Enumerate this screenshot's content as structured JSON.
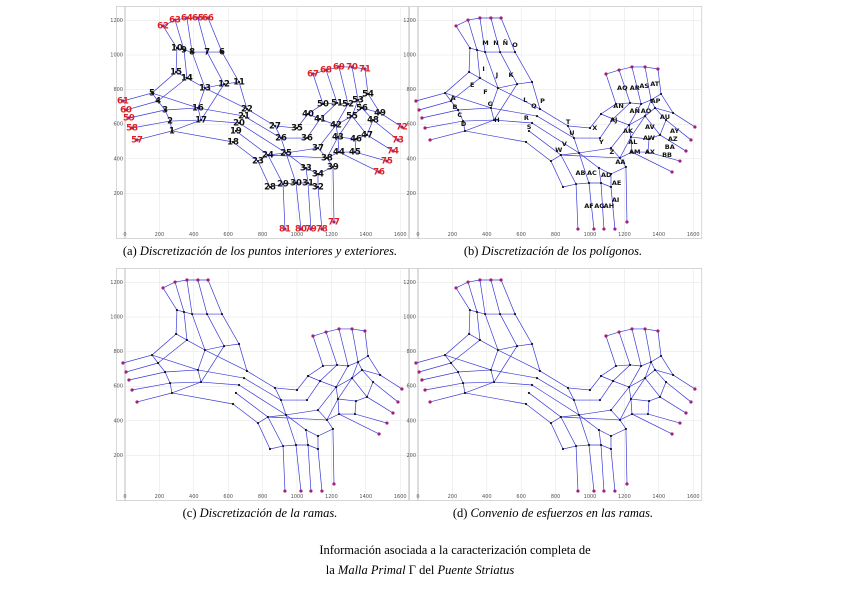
{
  "panels": [
    {
      "caption_label": "(a)",
      "caption": "Discretización de los puntos interiores y exteriores.",
      "xlim": [
        -50,
        1650
      ],
      "ylim": [
        -60,
        1280
      ],
      "xticks": [
        0,
        200,
        400,
        600,
        800,
        1000,
        1200,
        1400,
        1600
      ],
      "yticks": [
        200,
        400,
        600,
        800,
        1000,
        1200
      ],
      "labels": [
        {
          "text": "1",
          "x": 273,
          "y": 561
        },
        {
          "text": "2",
          "x": 262,
          "y": 618
        },
        {
          "text": "3",
          "x": 233,
          "y": 682
        },
        {
          "text": "4",
          "x": 192,
          "y": 734
        },
        {
          "text": "5",
          "x": 157,
          "y": 780
        },
        {
          "text": "6",
          "x": 564,
          "y": 1017
        },
        {
          "text": "7",
          "x": 477,
          "y": 1017
        },
        {
          "text": "8",
          "x": 390,
          "y": 1017
        },
        {
          "text": "9",
          "x": 343,
          "y": 1029
        },
        {
          "text": "10",
          "x": 302,
          "y": 1040
        },
        {
          "text": "11",
          "x": 663,
          "y": 844
        },
        {
          "text": "12",
          "x": 576,
          "y": 832
        },
        {
          "text": "13",
          "x": 465,
          "y": 809
        },
        {
          "text": "14",
          "x": 360,
          "y": 867
        },
        {
          "text": "15",
          "x": 297,
          "y": 902
        },
        {
          "text": "16",
          "x": 424,
          "y": 694
        },
        {
          "text": "17",
          "x": 442,
          "y": 624
        },
        {
          "text": "18",
          "x": 628,
          "y": 497
        },
        {
          "text": "19",
          "x": 645,
          "y": 561
        },
        {
          "text": "20",
          "x": 663,
          "y": 607
        },
        {
          "text": "21",
          "x": 692,
          "y": 647
        },
        {
          "text": "22",
          "x": 709,
          "y": 688
        },
        {
          "text": "23",
          "x": 773,
          "y": 387
        },
        {
          "text": "24",
          "x": 831,
          "y": 422
        },
        {
          "text": "25",
          "x": 936,
          "y": 434
        },
        {
          "text": "26",
          "x": 907,
          "y": 520
        },
        {
          "text": "27",
          "x": 872,
          "y": 590
        },
        {
          "text": "28",
          "x": 843,
          "y": 237
        },
        {
          "text": "29",
          "x": 919,
          "y": 254
        },
        {
          "text": "30",
          "x": 994,
          "y": 260
        },
        {
          "text": "31",
          "x": 1064,
          "y": 260
        },
        {
          "text": "32",
          "x": 1122,
          "y": 237
        },
        {
          "text": "33",
          "x": 1052,
          "y": 347
        },
        {
          "text": "34",
          "x": 1122,
          "y": 312
        },
        {
          "text": "35",
          "x": 1000,
          "y": 578
        },
        {
          "text": "36",
          "x": 1058,
          "y": 520
        },
        {
          "text": "37",
          "x": 1122,
          "y": 462
        },
        {
          "text": "38",
          "x": 1174,
          "y": 405
        },
        {
          "text": "39",
          "x": 1209,
          "y": 353
        },
        {
          "text": "40",
          "x": 1064,
          "y": 659
        },
        {
          "text": "41",
          "x": 1134,
          "y": 630
        },
        {
          "text": "42",
          "x": 1227,
          "y": 595
        },
        {
          "text": "43",
          "x": 1238,
          "y": 526
        },
        {
          "text": "44",
          "x": 1244,
          "y": 439
        },
        {
          "text": "45",
          "x": 1337,
          "y": 439
        },
        {
          "text": "46",
          "x": 1343,
          "y": 514
        },
        {
          "text": "47",
          "x": 1407,
          "y": 538
        },
        {
          "text": "48",
          "x": 1442,
          "y": 624
        },
        {
          "text": "49",
          "x": 1483,
          "y": 665
        },
        {
          "text": "50",
          "x": 1151,
          "y": 717
        },
        {
          "text": "51",
          "x": 1233,
          "y": 723
        },
        {
          "text": "52",
          "x": 1297,
          "y": 717
        },
        {
          "text": "53",
          "x": 1355,
          "y": 740
        },
        {
          "text": "54",
          "x": 1413,
          "y": 775
        },
        {
          "text": "55",
          "x": 1320,
          "y": 647
        },
        {
          "text": "56",
          "x": 1378,
          "y": 694
        }
      ],
      "outer_color": "#e02020",
      "outer_labels": [
        {
          "text": "57",
          "x": 70,
          "y": 509
        },
        {
          "text": "58",
          "x": 41,
          "y": 578
        },
        {
          "text": "59",
          "x": 23,
          "y": 636
        },
        {
          "text": "60",
          "x": 6,
          "y": 682
        },
        {
          "text": "61",
          "x": -12,
          "y": 734
        },
        {
          "text": "62",
          "x": 221,
          "y": 1168
        },
        {
          "text": "63",
          "x": 291,
          "y": 1202
        },
        {
          "text": "64",
          "x": 360,
          "y": 1214
        },
        {
          "text": "65",
          "x": 424,
          "y": 1214
        },
        {
          "text": "66",
          "x": 483,
          "y": 1214
        },
        {
          "text": "67",
          "x": 1093,
          "y": 890
        },
        {
          "text": "68",
          "x": 1169,
          "y": 913
        },
        {
          "text": "69",
          "x": 1244,
          "y": 931
        },
        {
          "text": "70",
          "x": 1320,
          "y": 931
        },
        {
          "text": "71",
          "x": 1395,
          "y": 919
        },
        {
          "text": "72",
          "x": 1610,
          "y": 584
        },
        {
          "text": "73",
          "x": 1587,
          "y": 509
        },
        {
          "text": "74",
          "x": 1558,
          "y": 445
        },
        {
          "text": "75",
          "x": 1523,
          "y": 387
        },
        {
          "text": "76",
          "x": 1477,
          "y": 324
        },
        {
          "text": "77",
          "x": 1215,
          "y": 35
        },
        {
          "text": "78",
          "x": 1145,
          "y": -6
        },
        {
          "text": "79",
          "x": 1081,
          "y": -6
        },
        {
          "text": "80",
          "x": 1023,
          "y": -6
        },
        {
          "text": "81",
          "x": 930,
          "y": -6
        }
      ]
    },
    {
      "caption_label": "(b)",
      "caption": "Discretización de los polígonos.",
      "xlim": [
        -50,
        1650
      ],
      "ylim": [
        -60,
        1280
      ],
      "xticks": [
        0,
        200,
        400,
        600,
        800,
        1000,
        1200,
        1400,
        1600
      ],
      "yticks": [
        200,
        400,
        600,
        800,
        1000,
        1200
      ],
      "labels": [
        {
          "text": "A",
          "x": 204,
          "y": 751
        },
        {
          "text": "B",
          "x": 215,
          "y": 699
        },
        {
          "text": "C",
          "x": 243,
          "y": 653
        },
        {
          "text": "D",
          "x": 265,
          "y": 601
        },
        {
          "text": "E",
          "x": 315,
          "y": 827
        },
        {
          "text": "F",
          "x": 392,
          "y": 786
        },
        {
          "text": "G",
          "x": 420,
          "y": 717
        },
        {
          "text": "H",
          "x": 459,
          "y": 624
        },
        {
          "text": "I",
          "x": 381,
          "y": 919
        },
        {
          "text": "J",
          "x": 459,
          "y": 884
        },
        {
          "text": "K",
          "x": 541,
          "y": 884
        },
        {
          "text": "L",
          "x": 624,
          "y": 740
        },
        {
          "text": "M",
          "x": 392,
          "y": 1069
        },
        {
          "text": "N",
          "x": 453,
          "y": 1069
        },
        {
          "text": "Ñ",
          "x": 508,
          "y": 1069
        },
        {
          "text": "O",
          "x": 564,
          "y": 1058
        },
        {
          "text": "P",
          "x": 724,
          "y": 734
        },
        {
          "text": "Q",
          "x": 674,
          "y": 705
        },
        {
          "text": "R",
          "x": 630,
          "y": 636
        },
        {
          "text": "S",
          "x": 646,
          "y": 584
        },
        {
          "text": "T",
          "x": 873,
          "y": 613
        },
        {
          "text": "U",
          "x": 895,
          "y": 549
        },
        {
          "text": "V",
          "x": 851,
          "y": 486
        },
        {
          "text": "W",
          "x": 818,
          "y": 451
        },
        {
          "text": "X",
          "x": 1028,
          "y": 578
        },
        {
          "text": "Y",
          "x": 1066,
          "y": 497
        },
        {
          "text": "Z",
          "x": 1127,
          "y": 439
        },
        {
          "text": "AA",
          "x": 1177,
          "y": 382
        },
        {
          "text": "AB",
          "x": 945,
          "y": 318
        },
        {
          "text": "AC",
          "x": 1011,
          "y": 318
        },
        {
          "text": "AD",
          "x": 1094,
          "y": 306
        },
        {
          "text": "AE",
          "x": 1155,
          "y": 260
        },
        {
          "text": "AF",
          "x": 994,
          "y": 127
        },
        {
          "text": "AG",
          "x": 1055,
          "y": 127
        },
        {
          "text": "AH",
          "x": 1110,
          "y": 127
        },
        {
          "text": "AI",
          "x": 1149,
          "y": 162
        },
        {
          "text": "AJ",
          "x": 1138,
          "y": 624
        },
        {
          "text": "AK",
          "x": 1221,
          "y": 561
        },
        {
          "text": "AL",
          "x": 1249,
          "y": 497
        },
        {
          "text": "AM",
          "x": 1260,
          "y": 439
        },
        {
          "text": "AN",
          "x": 1166,
          "y": 705
        },
        {
          "text": "AÑ",
          "x": 1260,
          "y": 676
        },
        {
          "text": "AO",
          "x": 1326,
          "y": 676
        },
        {
          "text": "AP",
          "x": 1381,
          "y": 734
        },
        {
          "text": "AQ",
          "x": 1188,
          "y": 809
        },
        {
          "text": "AR",
          "x": 1260,
          "y": 809
        },
        {
          "text": "AS",
          "x": 1315,
          "y": 821
        },
        {
          "text": "AT",
          "x": 1376,
          "y": 832
        },
        {
          "text": "AU",
          "x": 1436,
          "y": 642
        },
        {
          "text": "AV",
          "x": 1348,
          "y": 584
        },
        {
          "text": "AW",
          "x": 1343,
          "y": 520
        },
        {
          "text": "AX",
          "x": 1348,
          "y": 439
        },
        {
          "text": "AY",
          "x": 1492,
          "y": 561
        },
        {
          "text": "AZ",
          "x": 1481,
          "y": 514
        },
        {
          "text": "BA",
          "x": 1464,
          "y": 468
        },
        {
          "text": "BB",
          "x": 1448,
          "y": 422
        }
      ]
    },
    {
      "caption_label": "(c)",
      "caption": "Discretización de la ramas.",
      "xlim": [
        -50,
        1650
      ],
      "ylim": [
        -60,
        1280
      ],
      "xticks": [
        0,
        200,
        400,
        600,
        800,
        1000,
        1200,
        1400,
        1600
      ],
      "yticks": [
        200,
        400,
        600,
        800,
        1000,
        1200
      ]
    },
    {
      "caption_label": "(d)",
      "caption": "Convenio de esfuerzos en las ramas.",
      "xlim": [
        -50,
        1650
      ],
      "ylim": [
        -60,
        1280
      ],
      "xticks": [
        0,
        200,
        400,
        600,
        800,
        1000,
        1200,
        1400,
        1600
      ],
      "yticks": [
        200,
        400,
        600,
        800,
        1000,
        1200
      ]
    }
  ],
  "caption": {
    "line1": "Información asociada a la caracterización completa de",
    "pre": "la",
    "italic1": "Malla Primal",
    "symbol": "Γ",
    "mid": "del",
    "italic2": "Puente Striatus"
  }
}
